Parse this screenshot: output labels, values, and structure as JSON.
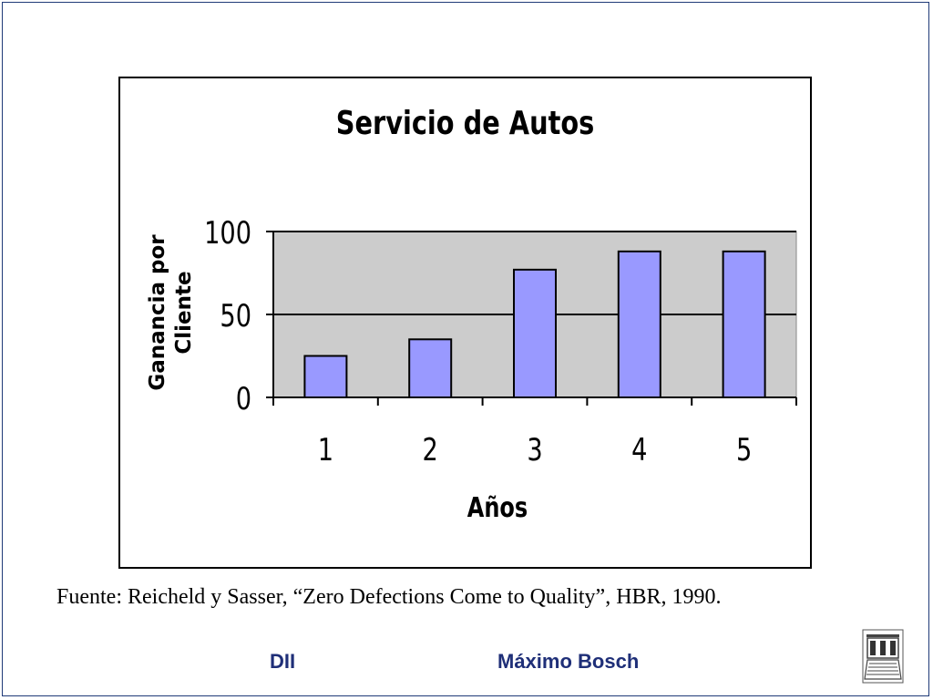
{
  "chart_data": {
    "type": "bar",
    "title": "Servicio de Autos",
    "xlabel": "Años",
    "ylabel": "Ganancia por Cliente",
    "categories": [
      "1",
      "2",
      "3",
      "4",
      "5"
    ],
    "values": [
      25,
      35,
      77,
      88,
      88
    ],
    "ylim": [
      0,
      100
    ],
    "yticks": [
      "0",
      "50",
      "100"
    ],
    "grid": true,
    "colors": {
      "bar": "#9999ff",
      "plot_bg": "#cccccc"
    }
  },
  "source": "Fuente: Reicheld y Sasser, “Zero Defections Come to Quality”, HBR, 1990.",
  "footer": {
    "left": "DII",
    "right": "Máximo Bosch"
  }
}
